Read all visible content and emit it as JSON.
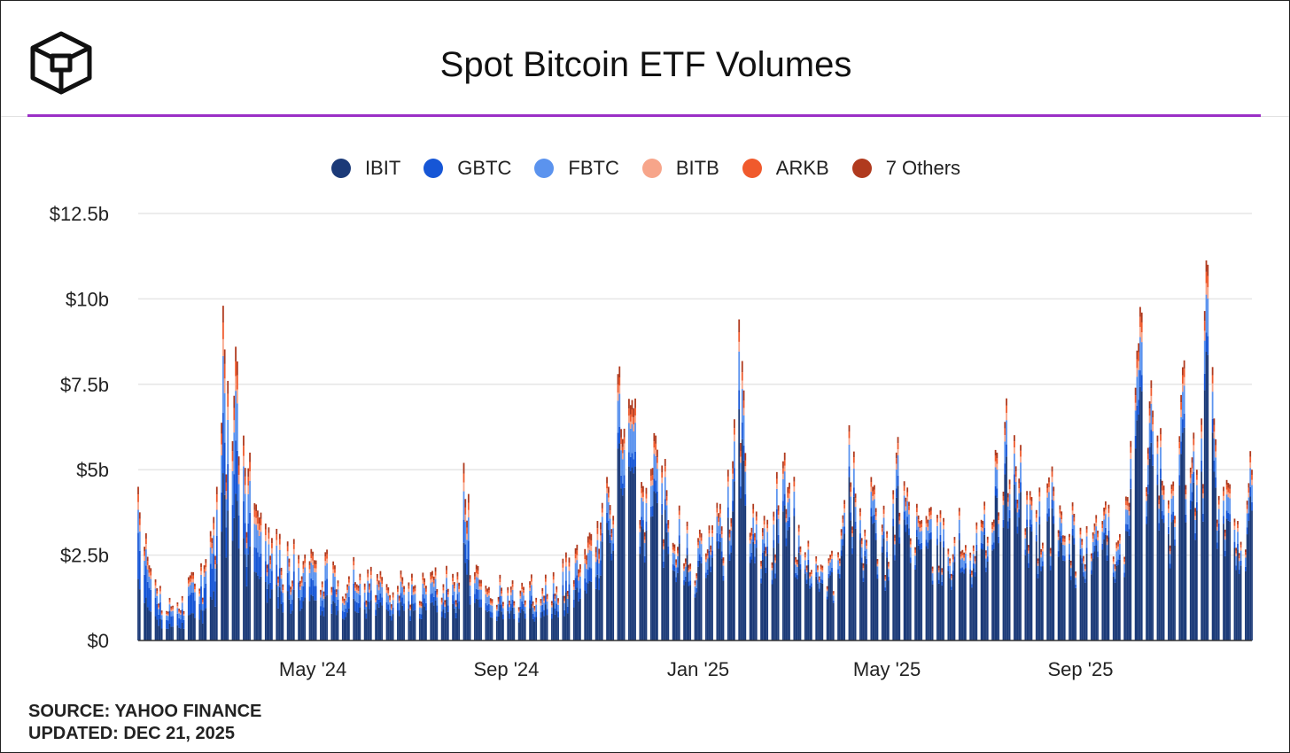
{
  "header": {
    "title": "Spot Bitcoin ETF Volumes",
    "logo_icon": "cube-logo-icon"
  },
  "footer": {
    "source": "SOURCE: YAHOO FINANCE",
    "updated": "UPDATED: DEC 21, 2025"
  },
  "chart_data": {
    "type": "bar",
    "stacked": true,
    "title": "Spot Bitcoin ETF Volumes",
    "xlabel": "",
    "ylabel": "",
    "grid": true,
    "legend_position": "top-center",
    "ylim": [
      0,
      12.5
    ],
    "y_ticks": [
      {
        "value": 0,
        "label": "$0"
      },
      {
        "value": 2.5,
        "label": "$2.5b"
      },
      {
        "value": 5,
        "label": "$5b"
      },
      {
        "value": 7.5,
        "label": "$7.5b"
      },
      {
        "value": 10,
        "label": "$10b"
      },
      {
        "value": 12.5,
        "label": "$12.5b"
      }
    ],
    "x_range": [
      "2024-01-11",
      "2025-12-19"
    ],
    "x_ticks": [
      {
        "date": "2024-05-01",
        "label": "May '24"
      },
      {
        "date": "2024-09-01",
        "label": "Sep '24"
      },
      {
        "date": "2025-01-01",
        "label": "Jan '25"
      },
      {
        "date": "2025-05-01",
        "label": "May '25"
      },
      {
        "date": "2025-09-01",
        "label": "Sep '25"
      }
    ],
    "series": [
      {
        "name": "IBIT",
        "color": "#1b3a78"
      },
      {
        "name": "GBTC",
        "color": "#1656d6"
      },
      {
        "name": "FBTC",
        "color": "#5b93ee"
      },
      {
        "name": "BITB",
        "color": "#f7a58a"
      },
      {
        "name": "ARKB",
        "color": "#f05a2c"
      },
      {
        "name": "7 Others",
        "color": "#b03a1e"
      }
    ],
    "totals_anchor": [
      [
        "2024-01-11",
        4.5
      ],
      [
        "2024-01-18",
        2.2
      ],
      [
        "2024-01-25",
        1.6
      ],
      [
        "2024-02-01",
        1.0
      ],
      [
        "2024-02-08",
        1.3
      ],
      [
        "2024-02-15",
        2.0
      ],
      [
        "2024-02-22",
        2.2
      ],
      [
        "2024-02-27",
        3.0
      ],
      [
        "2024-03-01",
        4.5
      ],
      [
        "2024-03-05",
        9.8
      ],
      [
        "2024-03-08",
        7.6
      ],
      [
        "2024-03-13",
        8.6
      ],
      [
        "2024-03-18",
        6.0
      ],
      [
        "2024-03-22",
        5.5
      ],
      [
        "2024-03-28",
        3.6
      ],
      [
        "2024-04-05",
        3.0
      ],
      [
        "2024-04-15",
        2.9
      ],
      [
        "2024-04-22",
        2.5
      ],
      [
        "2024-05-01",
        2.6
      ],
      [
        "2024-05-15",
        2.2
      ],
      [
        "2024-06-01",
        2.1
      ],
      [
        "2024-06-15",
        2.0
      ],
      [
        "2024-07-01",
        1.7
      ],
      [
        "2024-07-15",
        2.0
      ],
      [
        "2024-08-01",
        2.0
      ],
      [
        "2024-08-05",
        5.2
      ],
      [
        "2024-08-12",
        2.0
      ],
      [
        "2024-09-01",
        1.6
      ],
      [
        "2024-09-15",
        1.7
      ],
      [
        "2024-10-01",
        2.0
      ],
      [
        "2024-10-15",
        2.7
      ],
      [
        "2024-10-29",
        3.5
      ],
      [
        "2024-11-05",
        4.5
      ],
      [
        "2024-11-11",
        7.8
      ],
      [
        "2024-11-15",
        6.2
      ],
      [
        "2024-11-21",
        6.8
      ],
      [
        "2024-12-01",
        5.0
      ],
      [
        "2024-12-05",
        6.0
      ],
      [
        "2024-12-15",
        4.5
      ],
      [
        "2025-01-01",
        3.0
      ],
      [
        "2025-01-15",
        4.0
      ],
      [
        "2025-01-20",
        5.0
      ],
      [
        "2025-01-27",
        9.4
      ],
      [
        "2025-02-05",
        4.0
      ],
      [
        "2025-02-15",
        3.2
      ],
      [
        "2025-02-25",
        5.5
      ],
      [
        "2025-03-01",
        4.5
      ],
      [
        "2025-03-15",
        2.8
      ],
      [
        "2025-04-01",
        2.4
      ],
      [
        "2025-04-07",
        6.3
      ],
      [
        "2025-04-15",
        3.0
      ],
      [
        "2025-04-22",
        4.5
      ],
      [
        "2025-05-01",
        3.2
      ],
      [
        "2025-05-07",
        5.5
      ],
      [
        "2025-05-20",
        4.0
      ],
      [
        "2025-06-01",
        3.3
      ],
      [
        "2025-06-15",
        3.5
      ],
      [
        "2025-07-01",
        3.5
      ],
      [
        "2025-07-10",
        5.5
      ],
      [
        "2025-07-15",
        6.4
      ],
      [
        "2025-08-01",
        4.2
      ],
      [
        "2025-08-15",
        4.5
      ],
      [
        "2025-09-01",
        3.3
      ],
      [
        "2025-09-15",
        3.5
      ],
      [
        "2025-10-01",
        4.2
      ],
      [
        "2025-10-06",
        7.4
      ],
      [
        "2025-10-10",
        9.6
      ],
      [
        "2025-10-15",
        7.0
      ],
      [
        "2025-10-20",
        6.0
      ],
      [
        "2025-11-01",
        4.5
      ],
      [
        "2025-11-05",
        8.0
      ],
      [
        "2025-11-14",
        5.0
      ],
      [
        "2025-11-17",
        6.5
      ],
      [
        "2025-11-21",
        11.0
      ],
      [
        "2025-11-25",
        6.5
      ],
      [
        "2025-12-01",
        4.5
      ],
      [
        "2025-12-10",
        3.5
      ],
      [
        "2025-12-19",
        5.0
      ]
    ],
    "composition_note": "",
    "mix_by_period": [
      {
        "from": "2024-01-11",
        "IBIT": 0.4,
        "GBTC": 0.3,
        "FBTC": 0.15,
        "BITB": 0.05,
        "ARKB": 0.05,
        "7 Others": 0.05
      },
      {
        "from": "2024-03-01",
        "IBIT": 0.5,
        "GBTC": 0.18,
        "FBTC": 0.17,
        "BITB": 0.05,
        "ARKB": 0.05,
        "7 Others": 0.05
      },
      {
        "from": "2024-06-01",
        "IBIT": 0.55,
        "GBTC": 0.13,
        "FBTC": 0.16,
        "BITB": 0.05,
        "ARKB": 0.05,
        "7 Others": 0.06
      },
      {
        "from": "2024-11-01",
        "IBIT": 0.72,
        "GBTC": 0.06,
        "FBTC": 0.12,
        "BITB": 0.03,
        "ARKB": 0.03,
        "7 Others": 0.04
      },
      {
        "from": "2025-03-01",
        "IBIT": 0.76,
        "GBTC": 0.05,
        "FBTC": 0.1,
        "BITB": 0.03,
        "ARKB": 0.03,
        "7 Others": 0.03
      }
    ]
  }
}
